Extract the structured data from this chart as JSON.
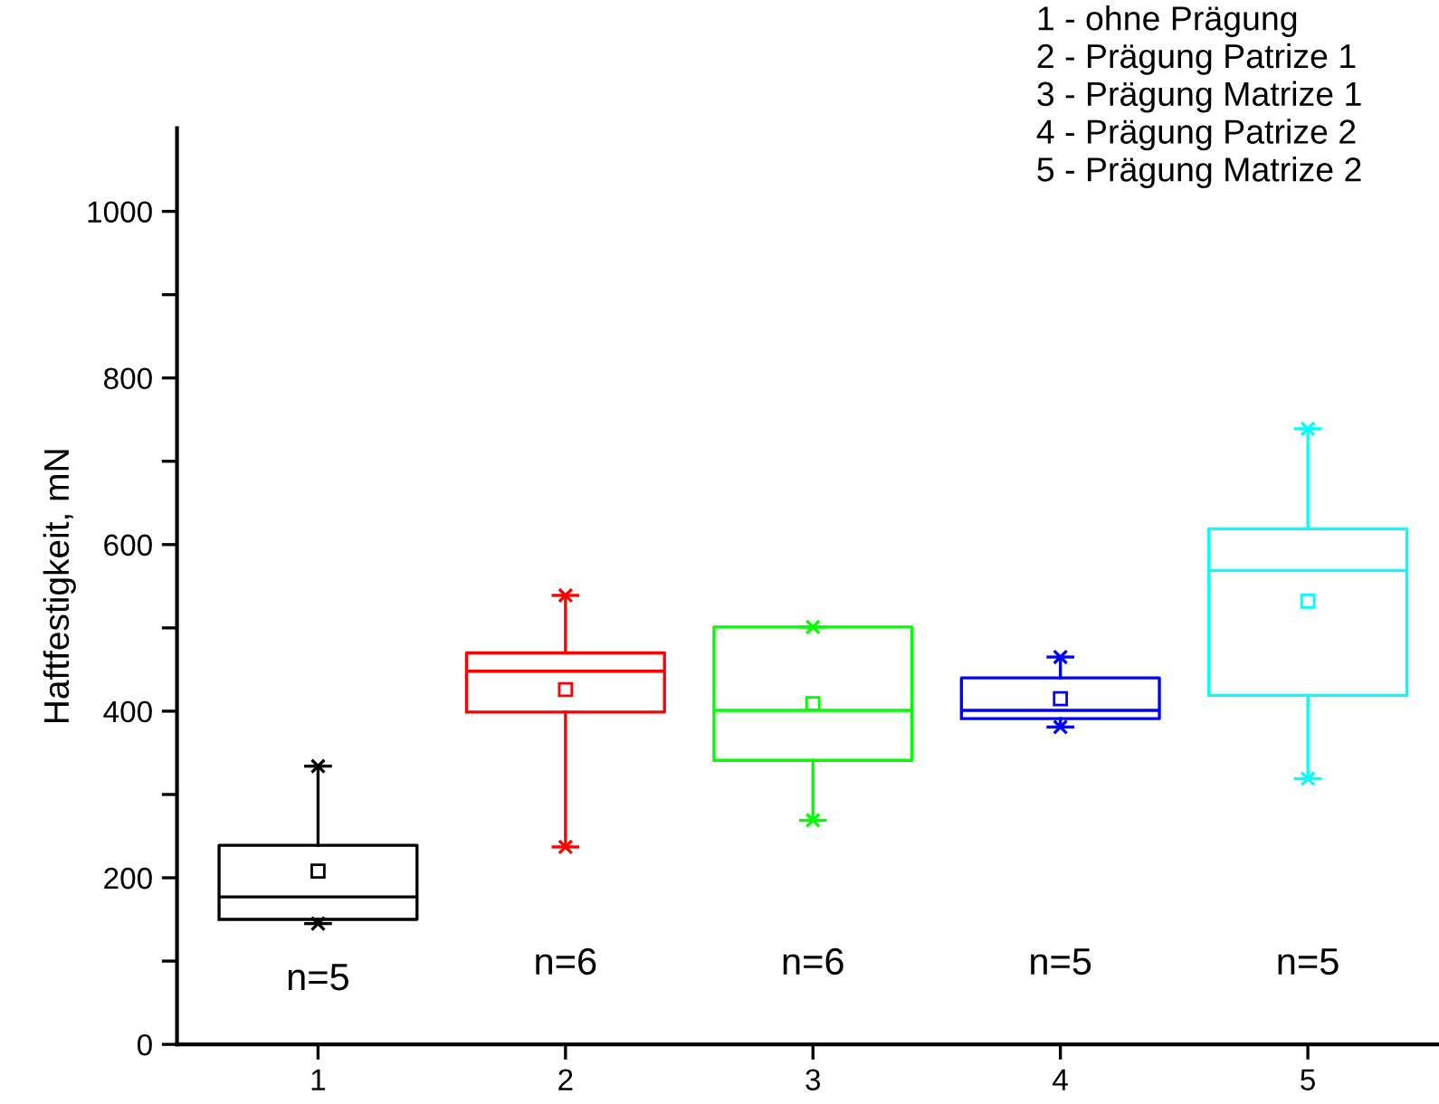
{
  "chart_data": {
    "type": "box",
    "ylabel": "Haftfestigkeit, mN",
    "categories": [
      "1",
      "2",
      "3",
      "4",
      "5"
    ],
    "colors": [
      "#000000",
      "#ff0000",
      "#00ff00",
      "#0000ff",
      "#00ffff"
    ],
    "boxes": [
      {
        "low": 145,
        "q1": 150,
        "median": 177,
        "q3": 239,
        "high": 334,
        "mean": 208
      },
      {
        "low": 237,
        "q1": 399,
        "median": 448,
        "q3": 470,
        "high": 539,
        "mean": 426
      },
      {
        "low": 269,
        "q1": 341,
        "median": 401,
        "q3": 501,
        "high": 501,
        "mean": 409
      },
      {
        "low": 381,
        "q1": 391,
        "median": 401,
        "q3": 440,
        "high": 465,
        "mean": 415
      },
      {
        "low": 319,
        "q1": 419,
        "median": 569,
        "q3": 619,
        "high": 739,
        "mean": 532
      }
    ],
    "ylim": [
      0,
      1100
    ],
    "yticks": [
      0,
      {
        "value": 100,
        "label": null
      },
      200,
      {
        "value": 300,
        "label": null
      },
      400,
      {
        "value": 500,
        "label": null
      },
      600,
      {
        "value": 700,
        "label": null
      },
      800,
      {
        "value": 900,
        "label": null
      },
      1000
    ],
    "grid": false,
    "annotations": [
      "n=5",
      "n=6",
      "n=6",
      "n=5",
      "n=5",
      "1 - ohne Prägung\n2 - Prägung Patrize 1\n3 - Prägung Matrize 1\n4 - Prägung Patrize 2\n5 - Prägung Matrize 2"
    ]
  }
}
